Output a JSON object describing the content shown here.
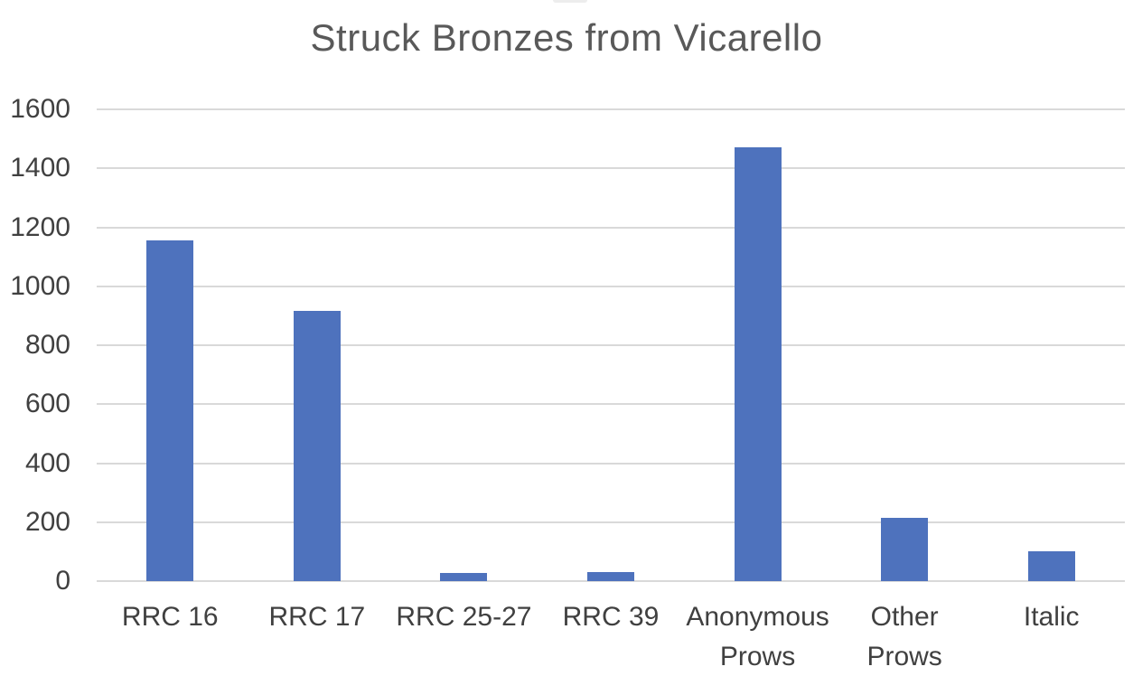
{
  "chart_data": {
    "type": "bar",
    "title": "Struck Bronzes from Vicarello",
    "categories": [
      "RRC 16",
      "RRC 17",
      "RRC 25-27",
      "RRC 39",
      "Anonymous Prows",
      "Other Prows",
      "Italic"
    ],
    "tick_labels": [
      "RRC 16",
      "RRC 17",
      "RRC 25-27",
      "RRC 39",
      "Anonymous\nProws",
      "Other\nProws",
      "Italic"
    ],
    "values": [
      1155,
      916,
      27,
      32,
      1470,
      215,
      100
    ],
    "xlabel": "",
    "ylabel": "",
    "ylim": [
      0,
      1600
    ],
    "ytick_step": 200,
    "ytick_labels": [
      "0",
      "200",
      "400",
      "600",
      "800",
      "1000",
      "1200",
      "1400",
      "1600"
    ],
    "grid": "horizontal-only",
    "legend": "none",
    "data_labels": "none",
    "colors": {
      "bar": "#4e72bd",
      "gridline": "#d9d9d9",
      "axis_labels": "#404040",
      "title": "#595959",
      "background": "#ffffff"
    }
  }
}
